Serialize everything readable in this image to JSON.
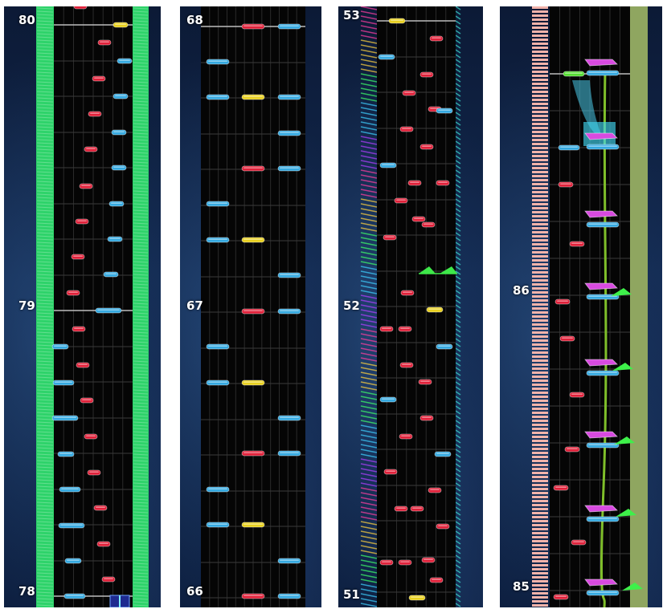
{
  "panels": [
    {
      "name": "panel-1",
      "labels": [
        "80",
        "79",
        "78"
      ]
    },
    {
      "name": "panel-2",
      "labels": [
        "68",
        "67",
        "66"
      ]
    },
    {
      "name": "panel-3",
      "labels": [
        "53",
        "52",
        "51"
      ]
    },
    {
      "name": "panel-4",
      "labels": [
        "86",
        "85"
      ]
    }
  ],
  "colors": {
    "tap_note": "#e0213a",
    "hold_note": "#35a9e0",
    "gold_note": "#e8d020",
    "green_rail": "#2ed36a",
    "purple_flick": "#d84ae0",
    "slide_path": "#7fbf2a"
  }
}
